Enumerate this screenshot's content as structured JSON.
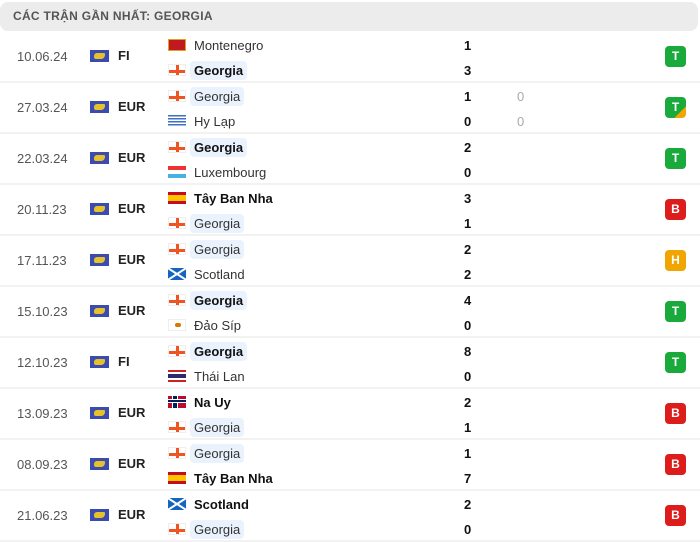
{
  "header": {
    "title": "CÁC TRẬN GẦN NHẤT: GEORGIA"
  },
  "colors": {
    "win": "#1aaa3c",
    "loss": "#dd1c1c",
    "draw": "#f0a500",
    "highlight": "#eaf3fd"
  },
  "matches": [
    {
      "date": "10.06.24",
      "competition": "FI",
      "home": {
        "name": "Montenegro",
        "flag": "mne",
        "score": "1"
      },
      "away": {
        "name": "Georgia",
        "flag": "geo",
        "score": "3"
      },
      "result": "T",
      "result_type": "win",
      "winner": "away",
      "focus": "away"
    },
    {
      "date": "27.03.24",
      "competition": "EUR",
      "home": {
        "name": "Georgia",
        "flag": "geo",
        "score": "1",
        "pen": "0"
      },
      "away": {
        "name": "Hy Lạp",
        "flag": "gre",
        "score": "0",
        "pen": "0"
      },
      "result": "T",
      "result_type": "win-pen",
      "winner": "",
      "focus": "home"
    },
    {
      "date": "22.03.24",
      "competition": "EUR",
      "home": {
        "name": "Georgia",
        "flag": "geo",
        "score": "2"
      },
      "away": {
        "name": "Luxembourg",
        "flag": "lux",
        "score": "0"
      },
      "result": "T",
      "result_type": "win",
      "winner": "home",
      "focus": "home"
    },
    {
      "date": "20.11.23",
      "competition": "EUR",
      "home": {
        "name": "Tây Ban Nha",
        "flag": "esp",
        "score": "3"
      },
      "away": {
        "name": "Georgia",
        "flag": "geo",
        "score": "1"
      },
      "result": "B",
      "result_type": "loss",
      "winner": "home",
      "focus": "away"
    },
    {
      "date": "17.11.23",
      "competition": "EUR",
      "home": {
        "name": "Georgia",
        "flag": "geo",
        "score": "2"
      },
      "away": {
        "name": "Scotland",
        "flag": "sco",
        "score": "2"
      },
      "result": "H",
      "result_type": "draw",
      "winner": "",
      "focus": "home"
    },
    {
      "date": "15.10.23",
      "competition": "EUR",
      "home": {
        "name": "Georgia",
        "flag": "geo",
        "score": "4"
      },
      "away": {
        "name": "Đảo Síp",
        "flag": "cyp",
        "score": "0"
      },
      "result": "T",
      "result_type": "win",
      "winner": "home",
      "focus": "home"
    },
    {
      "date": "12.10.23",
      "competition": "FI",
      "home": {
        "name": "Georgia",
        "flag": "geo",
        "score": "8"
      },
      "away": {
        "name": "Thái Lan",
        "flag": "tha",
        "score": "0"
      },
      "result": "T",
      "result_type": "win",
      "winner": "home",
      "focus": "home"
    },
    {
      "date": "13.09.23",
      "competition": "EUR",
      "home": {
        "name": "Na Uy",
        "flag": "nor",
        "score": "2"
      },
      "away": {
        "name": "Georgia",
        "flag": "geo",
        "score": "1"
      },
      "result": "B",
      "result_type": "loss",
      "winner": "home",
      "focus": "away"
    },
    {
      "date": "08.09.23",
      "competition": "EUR",
      "home": {
        "name": "Georgia",
        "flag": "geo",
        "score": "1"
      },
      "away": {
        "name": "Tây Ban Nha",
        "flag": "esp",
        "score": "7"
      },
      "result": "B",
      "result_type": "loss",
      "winner": "away",
      "focus": "home"
    },
    {
      "date": "21.06.23",
      "competition": "EUR",
      "home": {
        "name": "Scotland",
        "flag": "sco",
        "score": "2"
      },
      "away": {
        "name": "Georgia",
        "flag": "geo",
        "score": "0"
      },
      "result": "B",
      "result_type": "loss",
      "winner": "home",
      "focus": "away"
    }
  ]
}
